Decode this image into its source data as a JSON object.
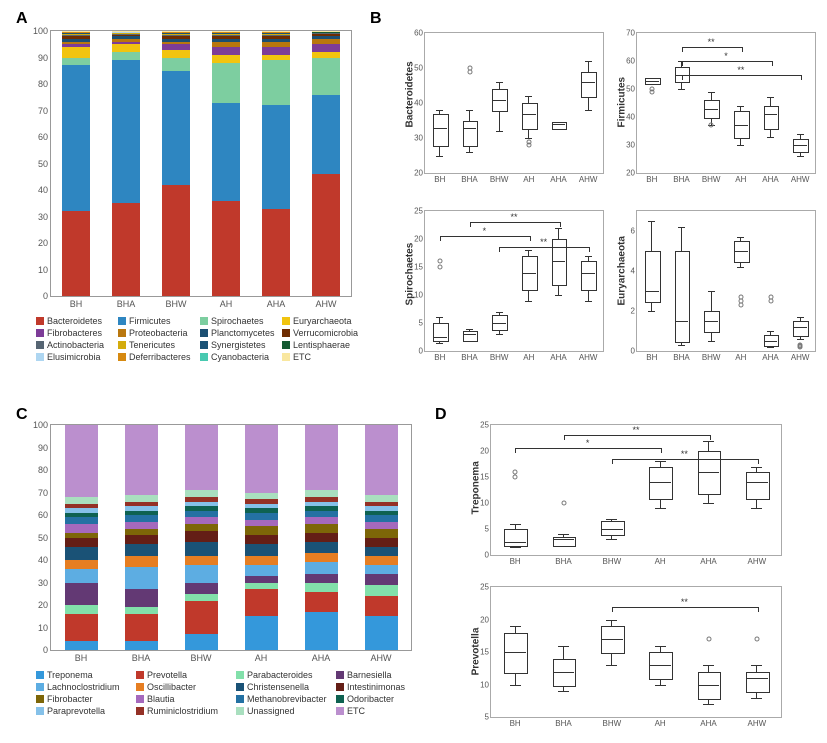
{
  "panels": {
    "A": "A",
    "B": "B",
    "C": "C",
    "D": "D"
  },
  "categories": [
    "BH",
    "BHA",
    "BHW",
    "AH",
    "AHA",
    "AHW"
  ],
  "panelA": {
    "type": "stacked-bar",
    "ylim": [
      0,
      100
    ],
    "ytick_step": 10,
    "series": [
      {
        "name": "Bacteroidetes",
        "color": "#c0392b"
      },
      {
        "name": "Firmicutes",
        "color": "#2e86c1"
      },
      {
        "name": "Spirochaetes",
        "color": "#7dcea0"
      },
      {
        "name": "Euryarchaeota",
        "color": "#f1c40f"
      },
      {
        "name": "Fibrobacteres",
        "color": "#7d3c98"
      },
      {
        "name": "Proteobacteria",
        "color": "#b9770e"
      },
      {
        "name": "Planctomycetes",
        "color": "#1b4f72"
      },
      {
        "name": "Verrucomicrobia",
        "color": "#6e2c00"
      },
      {
        "name": "Actinobacteria",
        "color": "#566573"
      },
      {
        "name": "Tenericutes",
        "color": "#d4ac0d"
      },
      {
        "name": "Synergistetes",
        "color": "#1a5276"
      },
      {
        "name": "Lentisphaerae",
        "color": "#145a32"
      },
      {
        "name": "Elusimicrobia",
        "color": "#aed6f1"
      },
      {
        "name": "Deferribacteres",
        "color": "#d68910"
      },
      {
        "name": "Cyanobacteria",
        "color": "#48c9b0"
      },
      {
        "name": "ETC",
        "color": "#f9e79f"
      }
    ],
    "values": {
      "BH": [
        32,
        55,
        3,
        4,
        1,
        1,
        1,
        1,
        0.5,
        0.4,
        0.3,
        0.3,
        0.2,
        0.1,
        0.1,
        0.1
      ],
      "BHA": [
        35,
        54,
        3,
        3,
        1,
        1,
        1,
        0.5,
        0.4,
        0.3,
        0.3,
        0.2,
        0.1,
        0.1,
        0.05,
        0.05
      ],
      "BHW": [
        42,
        43,
        5,
        3,
        2,
        1,
        1,
        1,
        0.5,
        0.4,
        0.3,
        0.3,
        0.2,
        0.1,
        0.1,
        0.1
      ],
      "AH": [
        36,
        37,
        15,
        3,
        3,
        2,
        1,
        1,
        0.5,
        0.4,
        0.3,
        0.3,
        0.2,
        0.1,
        0.1,
        0.1
      ],
      "AHA": [
        33,
        39,
        17,
        2,
        3,
        2,
        1,
        1,
        0.5,
        0.4,
        0.3,
        0.3,
        0.2,
        0.1,
        0.1,
        0.1
      ],
      "AHW": [
        46,
        30,
        14,
        2,
        3,
        2,
        1,
        1,
        0.3,
        0.3,
        0.1,
        0.1,
        0.05,
        0.05,
        0.05,
        0.05
      ]
    }
  },
  "panelB": {
    "charts": [
      {
        "label": "Bacteroidetes",
        "ylim": [
          20,
          60
        ],
        "ystep": 10,
        "boxes": [
          {
            "q1": 28,
            "med": 33,
            "q3": 37,
            "lo": 25,
            "hi": 38,
            "out": []
          },
          {
            "q1": 28,
            "med": 33,
            "q3": 35,
            "lo": 26,
            "hi": 38,
            "out": [
              49,
              50
            ]
          },
          {
            "q1": 38,
            "med": 41,
            "q3": 44,
            "lo": 32,
            "hi": 46,
            "out": []
          },
          {
            "q1": 33,
            "med": 37,
            "q3": 40,
            "lo": 30,
            "hi": 42,
            "out": [
              28,
              29
            ]
          },
          {
            "q1": 33,
            "med": 34,
            "q3": 34.5,
            "lo": 33,
            "hi": 34.5,
            "out": []
          },
          {
            "q1": 42,
            "med": 46,
            "q3": 49,
            "lo": 38,
            "hi": 52,
            "out": []
          }
        ],
        "sig": []
      },
      {
        "label": "Firmicutes",
        "ylim": [
          20,
          70
        ],
        "ystep": 10,
        "boxes": [
          {
            "q1": 52,
            "med": 53,
            "q3": 54,
            "lo": 52,
            "hi": 54,
            "out": [
              49,
              50
            ]
          },
          {
            "q1": 53,
            "med": 55,
            "q3": 58,
            "lo": 50,
            "hi": 60,
            "out": []
          },
          {
            "q1": 40,
            "med": 43,
            "q3": 46,
            "lo": 37,
            "hi": 49,
            "out": [
              37
            ]
          },
          {
            "q1": 33,
            "med": 37,
            "q3": 42,
            "lo": 30,
            "hi": 44,
            "out": []
          },
          {
            "q1": 36,
            "med": 41,
            "q3": 44,
            "lo": 33,
            "hi": 47,
            "out": []
          },
          {
            "q1": 28,
            "med": 30,
            "q3": 32,
            "lo": 26,
            "hi": 34,
            "out": []
          }
        ],
        "sig": [
          {
            "from": 1,
            "to": 3,
            "y": 65,
            "label": "**"
          },
          {
            "from": 1,
            "to": 4,
            "y": 60,
            "label": "*"
          },
          {
            "from": 1,
            "to": 5,
            "y": 55,
            "label": "**"
          }
        ]
      },
      {
        "label": "Spirochaetes",
        "ylim": [
          0,
          25
        ],
        "ystep": 5,
        "boxes": [
          {
            "q1": 2,
            "med": 2.5,
            "q3": 5,
            "lo": 1.5,
            "hi": 6,
            "out": [
              15,
              16
            ]
          },
          {
            "q1": 2,
            "med": 3,
            "q3": 3.5,
            "lo": 1.8,
            "hi": 4,
            "out": []
          },
          {
            "q1": 4,
            "med": 5,
            "q3": 6.5,
            "lo": 3,
            "hi": 7,
            "out": []
          },
          {
            "q1": 11,
            "med": 14,
            "q3": 17,
            "lo": 9,
            "hi": 18,
            "out": []
          },
          {
            "q1": 12,
            "med": 16,
            "q3": 20,
            "lo": 10,
            "hi": 22,
            "out": []
          },
          {
            "q1": 11,
            "med": 14,
            "q3": 16,
            "lo": 9,
            "hi": 17,
            "out": []
          }
        ],
        "sig": [
          {
            "from": 1,
            "to": 4,
            "y": 23,
            "label": "**"
          },
          {
            "from": 0,
            "to": 3,
            "y": 20.5,
            "label": "*"
          },
          {
            "from": 2,
            "to": 5,
            "y": 18.5,
            "label": "**"
          }
        ]
      },
      {
        "label": "Euryarchaeota",
        "ylim": [
          0,
          7
        ],
        "ystep": 2,
        "boxes": [
          {
            "q1": 2.5,
            "med": 3,
            "q3": 5,
            "lo": 2,
            "hi": 6.5,
            "out": []
          },
          {
            "q1": 0.5,
            "med": 1.5,
            "q3": 5,
            "lo": 0.3,
            "hi": 6.2,
            "out": []
          },
          {
            "q1": 1,
            "med": 1.5,
            "q3": 2,
            "lo": 0.5,
            "hi": 3,
            "out": []
          },
          {
            "q1": 4.5,
            "med": 5,
            "q3": 5.5,
            "lo": 4.2,
            "hi": 5.7,
            "out": [
              2.3,
              2.5,
              2.7
            ]
          },
          {
            "q1": 0.3,
            "med": 0.5,
            "q3": 0.8,
            "lo": 0.2,
            "hi": 1,
            "out": [
              2.5,
              2.7
            ]
          },
          {
            "q1": 0.8,
            "med": 1.2,
            "q3": 1.5,
            "lo": 0.6,
            "hi": 1.7,
            "out": [
              0.2,
              0.25,
              0.3
            ]
          }
        ],
        "sig": []
      }
    ]
  },
  "panelC": {
    "type": "stacked-bar",
    "ylim": [
      0,
      100
    ],
    "ytick_step": 10,
    "series": [
      {
        "name": "Treponema",
        "color": "#3498db"
      },
      {
        "name": "Prevotella",
        "color": "#c0392b"
      },
      {
        "name": "Parabacteroides",
        "color": "#82e0aa"
      },
      {
        "name": "Barnesiella",
        "color": "#633974"
      },
      {
        "name": "Lachnoclostridium",
        "color": "#5dade2"
      },
      {
        "name": "Oscillibacter",
        "color": "#e67e22"
      },
      {
        "name": "Christensenella",
        "color": "#1a5276"
      },
      {
        "name": "Intestinimonas",
        "color": "#641e16"
      },
      {
        "name": "Fibrobacter",
        "color": "#7d6608"
      },
      {
        "name": "Blautia",
        "color": "#a569bd"
      },
      {
        "name": "Methanobrevibacter",
        "color": "#2471a3"
      },
      {
        "name": "Odoribacter",
        "color": "#0e6251"
      },
      {
        "name": "Paraprevotella",
        "color": "#85c1e9"
      },
      {
        "name": "Ruminiclostridium",
        "color": "#943126"
      },
      {
        "name": "Unassigned",
        "color": "#a9dfbf"
      },
      {
        "name": "ETC",
        "color": "#bb8fce"
      }
    ],
    "values": {
      "BH": [
        4,
        12,
        4,
        10,
        6,
        4,
        6,
        4,
        2,
        4,
        3,
        2,
        2,
        2,
        3,
        32
      ],
      "BHA": [
        4,
        12,
        3,
        8,
        10,
        5,
        5,
        4,
        3,
        3,
        3,
        2,
        2,
        2,
        3,
        31
      ],
      "BHW": [
        7,
        15,
        3,
        5,
        8,
        4,
        6,
        5,
        3,
        3,
        3,
        2,
        2,
        2,
        3,
        29
      ],
      "AH": [
        15,
        12,
        3,
        3,
        5,
        4,
        5,
        4,
        4,
        3,
        3,
        2,
        2,
        2,
        3,
        30
      ],
      "AHA": [
        17,
        9,
        4,
        4,
        5,
        4,
        5,
        4,
        4,
        3,
        3,
        2,
        2,
        2,
        3,
        29
      ],
      "AHW": [
        15,
        9,
        5,
        5,
        4,
        4,
        4,
        4,
        4,
        3,
        3,
        2,
        2,
        2,
        3,
        31
      ]
    }
  },
  "panelD": {
    "charts": [
      {
        "label": "Treponema",
        "ylim": [
          0,
          25
        ],
        "ystep": 5,
        "boxes": [
          {
            "q1": 2,
            "med": 2.5,
            "q3": 5,
            "lo": 1.5,
            "hi": 6,
            "out": [
              15,
              16
            ]
          },
          {
            "q1": 2,
            "med": 3,
            "q3": 3.5,
            "lo": 1.8,
            "hi": 4,
            "out": [
              10
            ]
          },
          {
            "q1": 4,
            "med": 5,
            "q3": 6.5,
            "lo": 3,
            "hi": 7,
            "out": []
          },
          {
            "q1": 11,
            "med": 14,
            "q3": 17,
            "lo": 9,
            "hi": 18,
            "out": []
          },
          {
            "q1": 12,
            "med": 16,
            "q3": 20,
            "lo": 10,
            "hi": 22,
            "out": []
          },
          {
            "q1": 11,
            "med": 14,
            "q3": 16,
            "lo": 9,
            "hi": 17,
            "out": []
          }
        ],
        "sig": [
          {
            "from": 1,
            "to": 4,
            "y": 23,
            "label": "**"
          },
          {
            "from": 0,
            "to": 3,
            "y": 20.5,
            "label": "*"
          },
          {
            "from": 2,
            "to": 5,
            "y": 18.5,
            "label": "**"
          }
        ]
      },
      {
        "label": "Prevotella",
        "ylim": [
          5,
          25
        ],
        "ystep": 5,
        "boxes": [
          {
            "q1": 12,
            "med": 15,
            "q3": 18,
            "lo": 10,
            "hi": 19,
            "out": []
          },
          {
            "q1": 10,
            "med": 12,
            "q3": 14,
            "lo": 9,
            "hi": 16,
            "out": []
          },
          {
            "q1": 15,
            "med": 17,
            "q3": 19,
            "lo": 13,
            "hi": 20,
            "out": []
          },
          {
            "q1": 11,
            "med": 13,
            "q3": 15,
            "lo": 10,
            "hi": 16,
            "out": []
          },
          {
            "q1": 8,
            "med": 10,
            "q3": 12,
            "lo": 7,
            "hi": 13,
            "out": [
              17
            ]
          },
          {
            "q1": 9,
            "med": 11,
            "q3": 12,
            "lo": 8,
            "hi": 13,
            "out": [
              17
            ]
          }
        ],
        "sig": [
          {
            "from": 2,
            "to": 5,
            "y": 22,
            "label": "**"
          }
        ]
      }
    ]
  }
}
